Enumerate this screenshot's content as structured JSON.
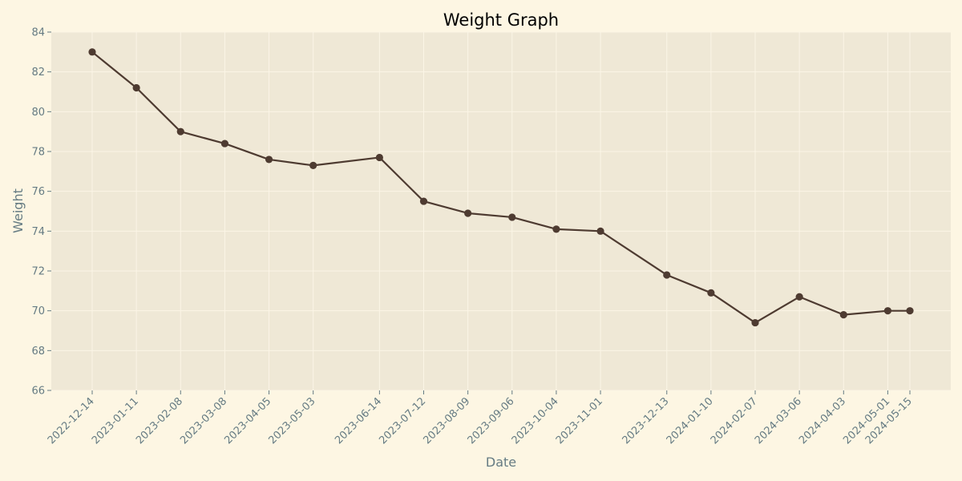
{
  "chart_data": {
    "type": "line",
    "title": "Weight Graph",
    "xlabel": "Date",
    "ylabel": "Weight",
    "ylim": [
      66,
      84
    ],
    "yticks": [
      66,
      68,
      70,
      72,
      74,
      76,
      78,
      80,
      82,
      84
    ],
    "grid": true,
    "x": [
      "2022-12-14",
      "2023-01-11",
      "2023-02-08",
      "2023-03-08",
      "2023-04-05",
      "2023-05-03",
      "2023-06-14",
      "2023-07-12",
      "2023-08-09",
      "2023-09-06",
      "2023-10-04",
      "2023-11-01",
      "2023-12-13",
      "2024-01-10",
      "2024-02-07",
      "2024-03-06",
      "2024-04-03",
      "2024-05-01",
      "2024-05-15"
    ],
    "series": [
      {
        "values": [
          83.0,
          81.2,
          79.0,
          78.4,
          77.6,
          77.3,
          77.7,
          75.5,
          74.9,
          74.7,
          74.1,
          74.0,
          71.8,
          70.9,
          69.4,
          70.7,
          69.8,
          70.0,
          70.0
        ],
        "color": "#4e3b31"
      }
    ],
    "colors": {
      "background": "#fdf6e3",
      "plot_background": "#efe8d6",
      "grid": "#fbf5e6",
      "text": "#657b83"
    }
  }
}
